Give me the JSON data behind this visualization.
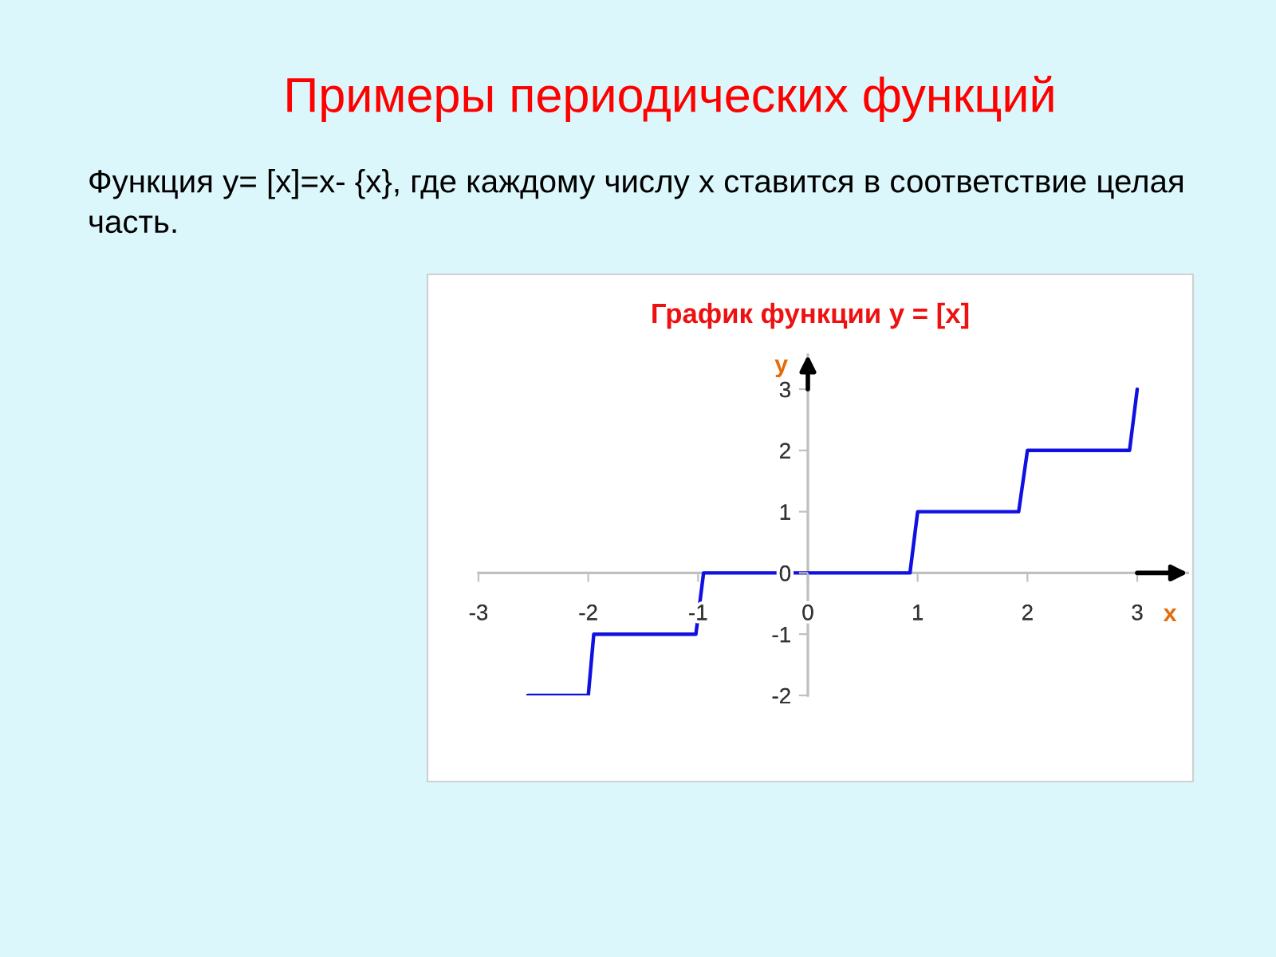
{
  "chart_data": {
    "type": "line",
    "title": "Примеры периодических функций",
    "subtitle": "Функция y= [x]=x- {x}, где каждому числу x ставится в соответствие целая часть.",
    "annotations": [
      "График функции y = [x]"
    ],
    "xlabel": "x",
    "ylabel": "y",
    "series": [
      {
        "color": "#1010e0",
        "x": [
          -2.55,
          -2.0,
          -1.95,
          -1.02,
          -0.95,
          0.93,
          1.0,
          1.92,
          2.0,
          2.93,
          3.0
        ],
        "values": [
          -2,
          -2,
          -1,
          -1,
          0,
          0,
          1,
          1,
          2,
          2,
          3
        ]
      }
    ],
    "xlim": [
      -3,
      3.46
    ],
    "ylim": [
      -2,
      3.56
    ],
    "xticks": [
      -3,
      -2,
      -1,
      0,
      1,
      2,
      3
    ],
    "yticks": [
      -2,
      -1,
      0,
      1,
      2,
      3
    ],
    "grid": false,
    "legend": false,
    "marker": "none",
    "line_style": "solid"
  }
}
